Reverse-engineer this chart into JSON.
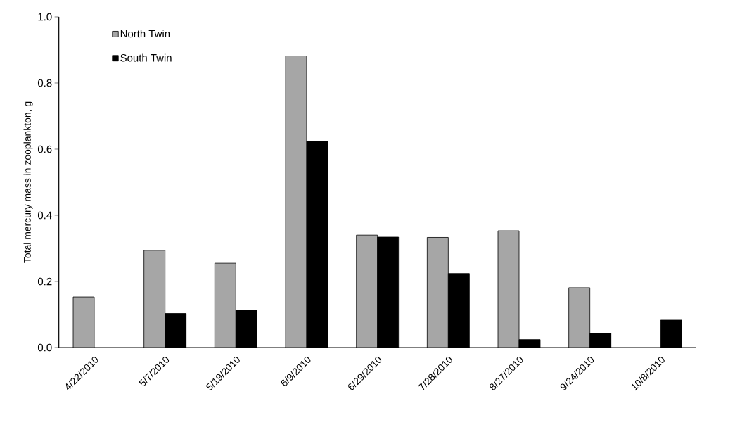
{
  "chart_data": {
    "type": "bar",
    "ylabel": "Total mercury mass in zooplankton, g",
    "categories": [
      "4/22/2010",
      "5/7/2010",
      "5/19/2010",
      "6/9/2010",
      "6/29/2010",
      "7/28/2010",
      "8/27/2010",
      "9/24/2010",
      "10/8/2010"
    ],
    "series": [
      {
        "name": "North Twin",
        "color": "#a6a6a6",
        "values": [
          0.153,
          0.294,
          0.255,
          0.882,
          0.34,
          0.333,
          0.353,
          0.181,
          null
        ]
      },
      {
        "name": "South Twin",
        "color": "#000000",
        "values": [
          null,
          0.103,
          0.113,
          0.624,
          0.334,
          0.224,
          0.024,
          0.043,
          0.083
        ]
      }
    ],
    "ylim": [
      0,
      1.0
    ],
    "yticks": [
      {
        "value": 0,
        "label": "0.0"
      },
      {
        "value": 0.2,
        "label": "0.2"
      },
      {
        "value": 0.4,
        "label": "0.4"
      },
      {
        "value": 0.6,
        "label": "0.6"
      },
      {
        "value": 0.8,
        "label": "0.8"
      },
      {
        "value": 1.0,
        "label": "1.0"
      }
    ],
    "grid": false,
    "legend": "top left"
  }
}
